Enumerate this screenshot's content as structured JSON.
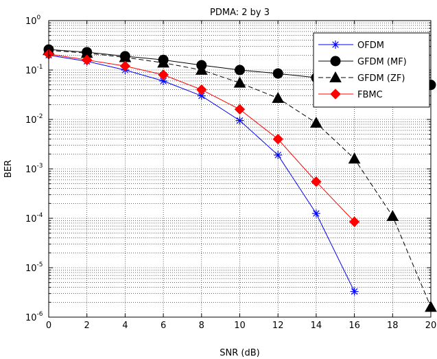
{
  "chart_data": {
    "type": "line",
    "title": "PDMA: 2 by 3",
    "xlabel": "SNR (dB)",
    "ylabel": "BER",
    "xlim": [
      0,
      20
    ],
    "ylim": [
      1e-06,
      1
    ],
    "yscale": "log",
    "grid": true,
    "grid_style": "dotted",
    "legend_position": "top-right",
    "x_ticks": [
      0,
      2,
      4,
      6,
      8,
      10,
      12,
      14,
      16,
      18,
      20
    ],
    "x_tick_labels": [
      "0",
      "2",
      "4",
      "6",
      "8",
      "10",
      "12",
      "14",
      "16",
      "18",
      "20"
    ],
    "y_tick_exponents": [
      0,
      -1,
      -2,
      -3,
      -4,
      -5,
      -6
    ],
    "y_tick_labels": [
      {
        "base": "10",
        "exp": "0"
      },
      {
        "base": "10",
        "exp": "-1"
      },
      {
        "base": "10",
        "exp": "-2"
      },
      {
        "base": "10",
        "exp": "-3"
      },
      {
        "base": "10",
        "exp": "-4"
      },
      {
        "base": "10",
        "exp": "-5"
      },
      {
        "base": "10",
        "exp": "-6"
      }
    ],
    "series": [
      {
        "name": "OFDM",
        "color": "#0000ff",
        "marker": "asterisk",
        "line_style": "solid",
        "x": [
          0,
          2,
          4,
          6,
          8,
          10,
          12,
          14,
          16
        ],
        "y": [
          0.2,
          0.15,
          0.1,
          0.06,
          0.03,
          0.0095,
          0.0019,
          0.000125,
          3.3e-06
        ]
      },
      {
        "name": "GFDM (MF)",
        "color": "#000000",
        "marker": "circle",
        "line_style": "solid",
        "x": [
          0,
          2,
          4,
          6,
          8,
          10,
          12,
          14,
          16,
          18,
          20
        ],
        "y": [
          0.26,
          0.23,
          0.19,
          0.16,
          0.125,
          0.1,
          0.085,
          0.07,
          0.062,
          0.056,
          0.05
        ]
      },
      {
        "name": "GFDM (ZF)",
        "color": "#000000",
        "marker": "triangle",
        "line_style": "dashed",
        "x": [
          0,
          2,
          4,
          6,
          8,
          10,
          12,
          14,
          16,
          18,
          20
        ],
        "y": [
          0.25,
          0.22,
          0.18,
          0.14,
          0.1,
          0.055,
          0.027,
          0.0085,
          0.0016,
          0.00011,
          1.6e-06
        ]
      },
      {
        "name": "FBMC",
        "color": "#ff0000",
        "marker": "diamond",
        "line_style": "solid",
        "x": [
          0,
          2,
          4,
          6,
          8,
          10,
          12,
          14,
          16
        ],
        "y": [
          0.21,
          0.16,
          0.12,
          0.08,
          0.04,
          0.016,
          0.004,
          0.00055,
          8.5e-05
        ]
      }
    ]
  }
}
